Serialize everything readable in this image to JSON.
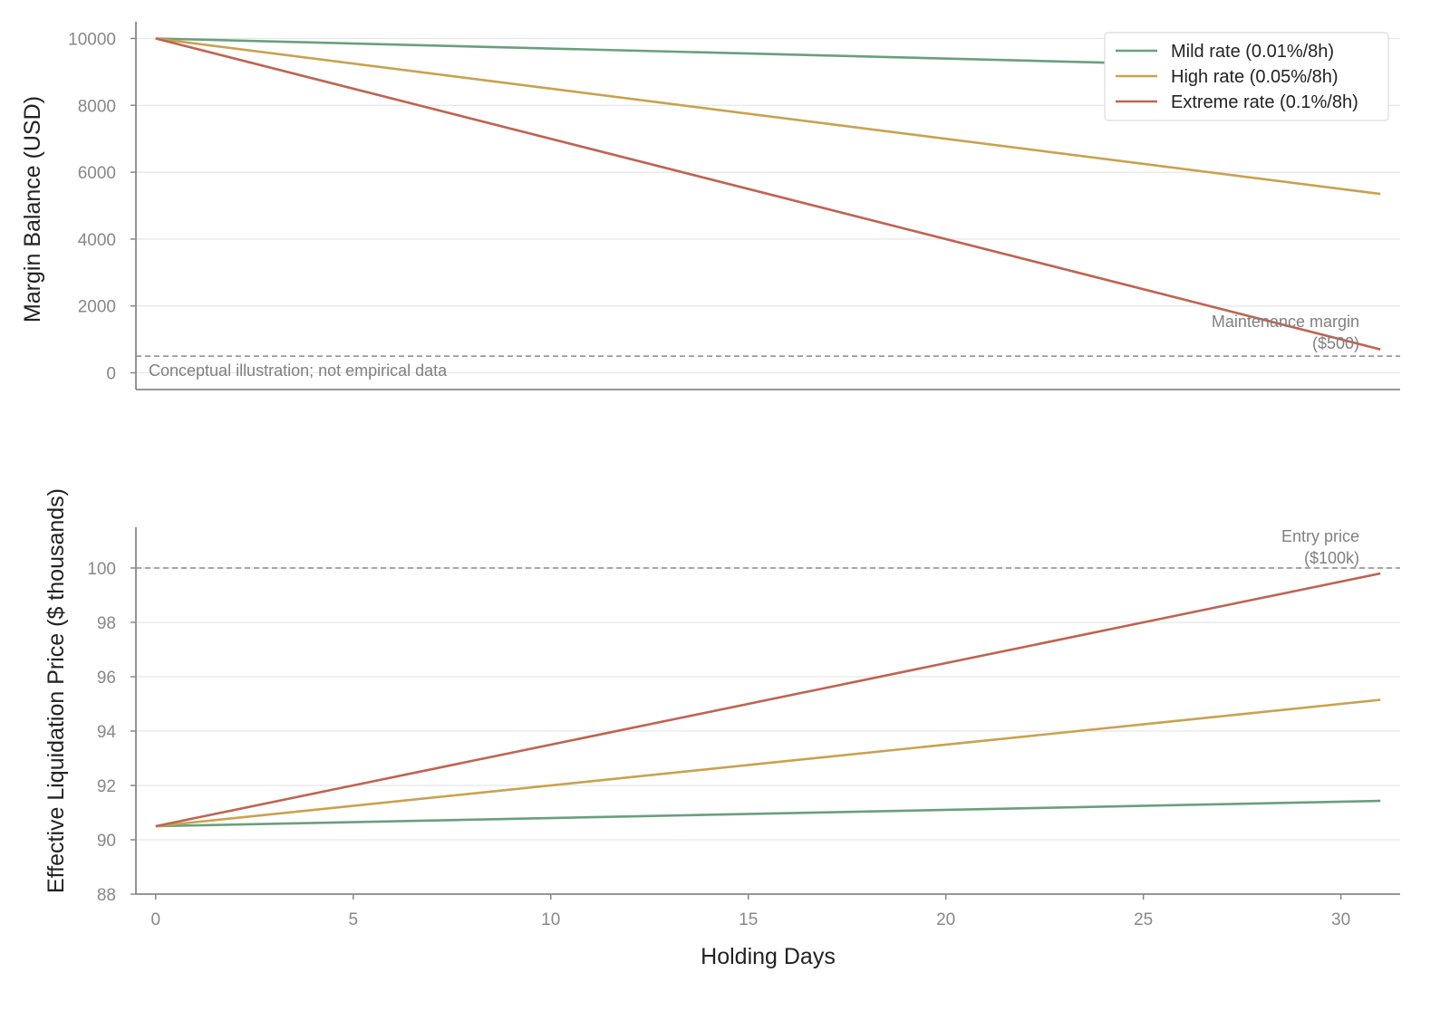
{
  "chart_data": [
    {
      "type": "line",
      "ylabel": "Margin Balance (USD)",
      "xlim": [
        -0.5,
        31.5
      ],
      "ylim": [
        -500,
        10500
      ],
      "yticks": [
        0,
        2000,
        4000,
        6000,
        8000,
        10000
      ],
      "grid": "y",
      "legend_position": "top-right",
      "x": [
        0,
        31
      ],
      "series": [
        {
          "name": "Mild rate (0.01%/8h)",
          "color": "#6a9f7e",
          "values": [
            10000,
            9070
          ]
        },
        {
          "name": "High rate (0.05%/8h)",
          "color": "#c9a24f",
          "values": [
            10000,
            5350
          ]
        },
        {
          "name": "Extreme rate (0.1%/8h)",
          "color": "#bf6450",
          "values": [
            10000,
            700
          ]
        }
      ],
      "reference_line": {
        "value": 500,
        "label_line1": "Maintenance margin",
        "label_line2": "($500)"
      },
      "annotation": "Conceptual illustration; not empirical data"
    },
    {
      "type": "line",
      "xlabel": "Holding Days",
      "ylabel": "Effective Liquidation Price ($ thousands)",
      "xlim": [
        -0.5,
        31.5
      ],
      "ylim": [
        88,
        101.5
      ],
      "xticks": [
        0,
        5,
        10,
        15,
        20,
        25,
        30
      ],
      "yticks": [
        88,
        90,
        92,
        94,
        96,
        98,
        100
      ],
      "grid": "y",
      "x": [
        0,
        31
      ],
      "series": [
        {
          "name": "Mild rate (0.01%/8h)",
          "color": "#6a9f7e",
          "values": [
            90.5,
            91.43
          ]
        },
        {
          "name": "High rate (0.05%/8h)",
          "color": "#c9a24f",
          "values": [
            90.5,
            95.15
          ]
        },
        {
          "name": "Extreme rate (0.1%/8h)",
          "color": "#bf6450",
          "values": [
            90.5,
            99.8
          ]
        }
      ],
      "reference_line": {
        "value": 100,
        "label_line1": "Entry price",
        "label_line2": "($100k)"
      }
    }
  ]
}
